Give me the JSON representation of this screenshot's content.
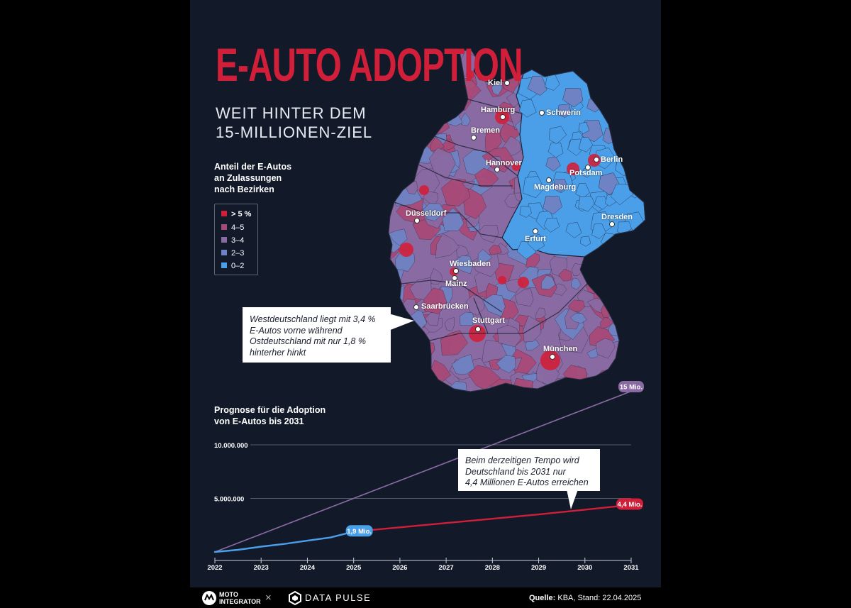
{
  "header": {
    "title": "E-AUTO ADOPTION",
    "subtitle_line1": "WEIT HINTER DEM",
    "subtitle_line2": "15-MILLIONEN-ZIEL"
  },
  "map_legend": {
    "title_line1": "Anteil der E-Autos",
    "title_line2": "an Zulassungen",
    "title_line3": "nach Bezirken",
    "items": [
      {
        "label": "> 5 %",
        "color": "#d11f3a"
      },
      {
        "label": "4–5",
        "color": "#a84a78"
      },
      {
        "label": "3–4",
        "color": "#8a6aa2"
      },
      {
        "label": "2–3",
        "color": "#6f83c4"
      },
      {
        "label": "0–2",
        "color": "#4a9fe8"
      }
    ]
  },
  "cities": [
    {
      "name": "Kiel"
    },
    {
      "name": "Hamburg"
    },
    {
      "name": "Schwerin"
    },
    {
      "name": "Bremen"
    },
    {
      "name": "Berlin"
    },
    {
      "name": "Hannover"
    },
    {
      "name": "Potsdam"
    },
    {
      "name": "Magdeburg"
    },
    {
      "name": "Düsseldorf"
    },
    {
      "name": "Dresden"
    },
    {
      "name": "Erfurt"
    },
    {
      "name": "Wiesbaden"
    },
    {
      "name": "Mainz"
    },
    {
      "name": "Saarbrücken"
    },
    {
      "name": "Stuttgart"
    },
    {
      "name": "München"
    }
  ],
  "map_callout": {
    "line1": "Westdeutschland liegt mit 3,4 %",
    "line2": "E-Autos vorne während",
    "line3": "Ostdeutschland mit nur 1,8 %",
    "line4": "hinterher hinkt"
  },
  "chart_title_line1": "Prognose für die Adoption",
  "chart_title_line2": "von E-Autos bis 2031",
  "chart_callout": {
    "line1": "Beim derzeitigen Tempo wird",
    "line2": "Deutschland bis 2031 nur",
    "line3": "4,4 Millionen E-Autos erreichen"
  },
  "chart_data": {
    "type": "line",
    "x_ticks": [
      "2022",
      "2023",
      "2024",
      "2025",
      "2026",
      "2027",
      "2028",
      "2029",
      "2030",
      "2031"
    ],
    "y_ticks": [
      "5.000.000",
      "10.000.000"
    ],
    "ylim": [
      0,
      10000000
    ],
    "xlim": [
      2022,
      2031
    ],
    "series": [
      {
        "color": "#8a6aa2",
        "x": [
          2022,
          2031
        ],
        "y": [
          0,
          15000000
        ],
        "label": "15 Mio."
      },
      {
        "color": "#4a9fe8",
        "x": [
          2022,
          2022.5,
          2023,
          2023.5,
          2024,
          2024.5,
          2025
        ],
        "y": [
          0,
          200000,
          500000,
          750000,
          1050000,
          1350000,
          1900000
        ],
        "label": "1,9 Mio."
      },
      {
        "color": "#d11f3a",
        "x": [
          2025,
          2026,
          2027,
          2028,
          2029,
          2030,
          2031
        ],
        "y": [
          1900000,
          2300000,
          2700000,
          3100000,
          3500000,
          3950000,
          4400000
        ],
        "label": "4,4 Mio."
      }
    ]
  },
  "footer": {
    "brand1_line1": "MOTO",
    "brand1_line2": "INTEGRATOR",
    "separator": "×",
    "brand2": "DATA PULSE",
    "source_label": "Quelle:",
    "source_text": " KBA, Stand: 22.04.2025"
  }
}
